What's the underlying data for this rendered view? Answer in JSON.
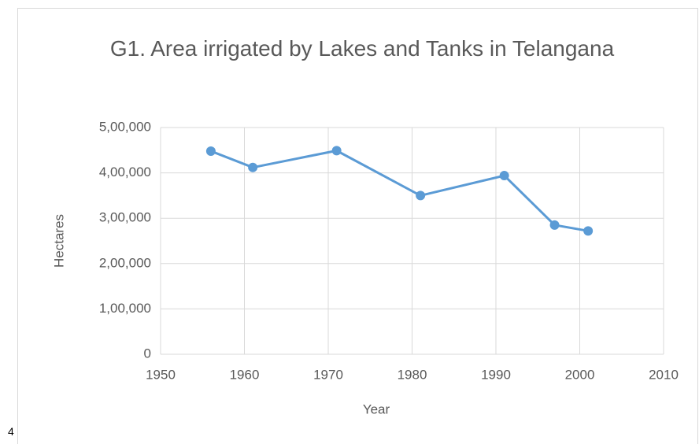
{
  "page_label": "4",
  "chart_data": {
    "type": "line",
    "title": "G1. Area irrigated by Lakes and Tanks in Telangana",
    "xlabel": "Year",
    "ylabel": "Hectares",
    "x": [
      1956,
      1961,
      1971,
      1981,
      1991,
      1997,
      2001
    ],
    "series": [
      {
        "name": "Area irrigated",
        "color": "#5b9bd5",
        "values": [
          448000,
          412000,
          449000,
          350000,
          394000,
          285000,
          272000
        ]
      }
    ],
    "xlim": [
      1950,
      2010
    ],
    "xticks": [
      1950,
      1960,
      1970,
      1980,
      1990,
      2000,
      2010
    ],
    "ylim": [
      0,
      500000
    ],
    "yticks": [
      0,
      {
        "value": 100000,
        "label": "1,00,000"
      },
      {
        "value": 200000,
        "label": "2,00,000"
      },
      {
        "value": 300000,
        "label": "3,00,000"
      },
      {
        "value": 400000,
        "label": "4,00,000"
      },
      {
        "value": 500000,
        "label": "5,00,000"
      }
    ],
    "grid": true
  }
}
